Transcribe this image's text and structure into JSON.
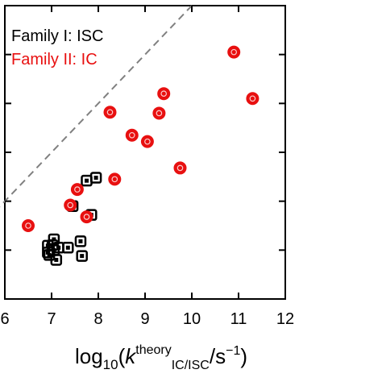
{
  "chart_data": {
    "type": "scatter",
    "xlabel": {
      "prefix": "log",
      "prefix_sub": "10",
      "open": "(",
      "var": "k",
      "var_sup": "theory",
      "var_sub": "IC/ISC",
      "slash_unit": "/s",
      "unit_sup": "−1",
      "close": ")"
    },
    "xlim": [
      6,
      12
    ],
    "ylim": [
      4,
      10
    ],
    "xticks": [
      "6",
      "7",
      "8",
      "9",
      "10",
      "11",
      "12"
    ],
    "ytick_values": [
      5,
      6,
      7,
      8,
      9,
      10
    ],
    "reference_line": "y = x (dashed gray)",
    "legend": {
      "placement": "top-left",
      "entries": [
        {
          "label": "Family I: ISC",
          "color": "#000000"
        },
        {
          "label": "Family II: IC",
          "color": "#e81010"
        }
      ]
    },
    "colors": {
      "family1": "#000000",
      "family2": "#e81010",
      "reference": "#808080"
    },
    "series": [
      {
        "name": "Family I: ISC",
        "marker": "square",
        "points": [
          [
            6.92,
            5.09
          ],
          [
            6.92,
            4.95
          ],
          [
            6.95,
            4.9
          ],
          [
            7.02,
            5.1
          ],
          [
            7.05,
            5.22
          ],
          [
            7.05,
            5.0
          ],
          [
            7.1,
            4.8
          ],
          [
            7.15,
            5.05
          ],
          [
            7.35,
            5.05
          ],
          [
            7.62,
            5.18
          ],
          [
            7.65,
            4.88
          ],
          [
            7.45,
            5.9
          ],
          [
            7.75,
            6.42
          ],
          [
            7.95,
            6.48
          ],
          [
            7.85,
            5.72
          ]
        ]
      },
      {
        "name": "Family II: IC",
        "marker": "circle",
        "points": [
          [
            6.5,
            5.5
          ],
          [
            7.4,
            5.92
          ],
          [
            7.55,
            6.24
          ],
          [
            7.75,
            5.68
          ],
          [
            8.35,
            6.45
          ],
          [
            8.25,
            7.82
          ],
          [
            8.72,
            7.35
          ],
          [
            9.05,
            7.22
          ],
          [
            9.3,
            7.8
          ],
          [
            9.4,
            8.2
          ],
          [
            9.75,
            6.68
          ],
          [
            10.9,
            9.05
          ],
          [
            11.3,
            8.1
          ]
        ]
      }
    ]
  }
}
